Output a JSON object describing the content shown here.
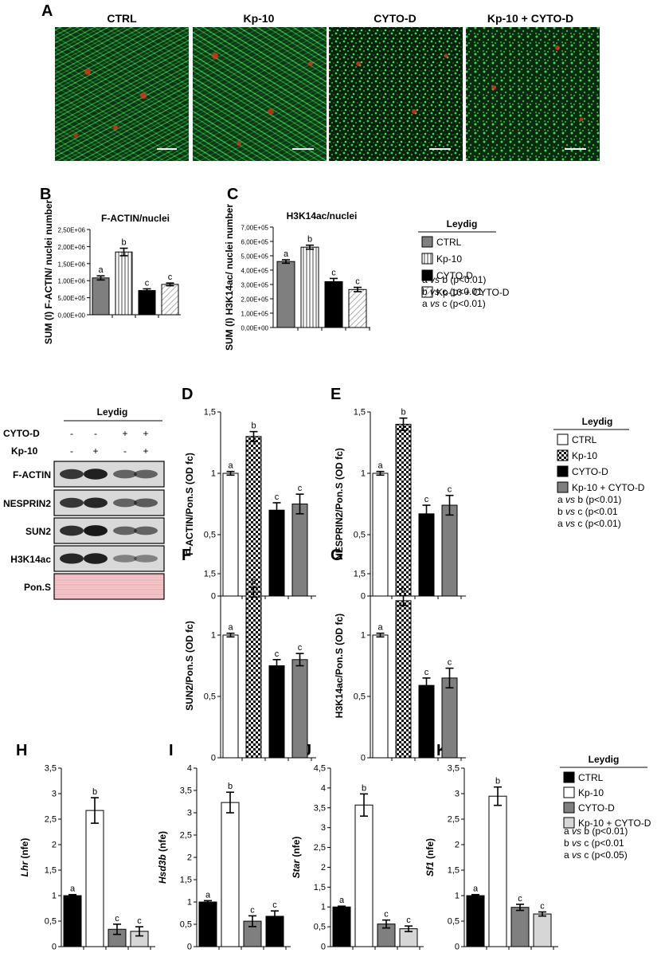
{
  "panels": {
    "A": "A",
    "B": "B",
    "C": "C",
    "D": "D",
    "E": "E",
    "F": "F",
    "G": "G",
    "H": "H",
    "I": "I",
    "J": "J",
    "K": "K"
  },
  "micrographs": [
    "CTRL",
    "Kp-10",
    "CYTO-D",
    "Kp-10 + CYTO-D"
  ],
  "blot": {
    "title": "Leydig",
    "row_labels": [
      "CYTO-D",
      "Kp-10"
    ],
    "cyto_d": [
      "-",
      "-",
      "+",
      "+"
    ],
    "kp10": [
      "-",
      "+",
      "-",
      "+"
    ],
    "bands": [
      "F-ACTIN",
      "NESPRIN2",
      "SUN2",
      "H3K14ac",
      "Pon.S"
    ]
  },
  "legends": [
    {
      "title": "Leydig",
      "entries": [
        "CTRL",
        "Kp-10",
        "CYTO-D",
        "Kp-10 + CYTO-D"
      ],
      "notes": [
        "a vs b (p<0.01)",
        "b vs c (p<0.01",
        "a vs c (p<0.01)"
      ]
    },
    {
      "title": "Leydig",
      "entries": [
        "CTRL",
        "Kp-10",
        "CYTO-D",
        "Kp-10 + CYTO-D"
      ],
      "notes": [
        "a vs b (p<0.01)",
        "b vs c (p<0.01",
        "a vs c (p<0.01)"
      ]
    },
    {
      "title": "Leydig",
      "entries": [
        "CTRL",
        "Kp-10",
        "CYTO-D",
        "Kp-10 + CYTO-D"
      ],
      "notes": [
        "a vs b (p<0.01)",
        "b vs c (p<0.01",
        "a vs c (p<0.05)"
      ]
    }
  ],
  "chart_data": [
    {
      "id": "B",
      "type": "bar",
      "title": "F-ACTIN/nuclei",
      "ylabel": "SUM (I) F-ACTIN/ nuclei number",
      "xlabel": "",
      "categories": [
        "CTRL",
        "Kp-10",
        "CYTO-D",
        "Kp-10 + CYTO-D"
      ],
      "values": [
        1080000,
        1840000,
        710000,
        890000
      ],
      "errors": [
        60000,
        110000,
        50000,
        40000
      ],
      "letters": [
        "a",
        "b",
        "c",
        "c"
      ],
      "ylim": [
        0,
        2500000
      ],
      "yticks": [
        "0,00E+00",
        "5,00E+05",
        "1,00E+06",
        "1,50E+06",
        "2,00E+06",
        "2,50E+06"
      ],
      "fills": [
        "gray",
        "vstripe",
        "black",
        "diag"
      ]
    },
    {
      "id": "C",
      "type": "bar",
      "title": "H3K14ac/nuclei",
      "ylabel": "SUM (I) H3K14ac/ nuclei number",
      "xlabel": "",
      "categories": [
        "CTRL",
        "Kp-10",
        "CYTO-D",
        "Kp-10 + CYTO-D"
      ],
      "values": [
        460000,
        560000,
        320000,
        265000
      ],
      "errors": [
        12000,
        14000,
        22000,
        15000
      ],
      "letters": [
        "a",
        "b",
        "c",
        "c"
      ],
      "ylim": [
        0,
        700000
      ],
      "yticks": [
        "0,00E+00",
        "1,00E+05",
        "2,00E+05",
        "3,00E+05",
        "4,00E+05",
        "5,00E+05",
        "6,00E+05",
        "7,00E+05"
      ],
      "fills": [
        "gray",
        "vstripe",
        "black",
        "diag"
      ]
    },
    {
      "id": "D",
      "type": "bar",
      "title": "",
      "xlabel": "",
      "ylabel": "F-ACTIN/Pon.S (OD fc)",
      "categories": [
        "CTRL",
        "Kp-10",
        "CYTO-D",
        "Kp-10 + CYTO-D"
      ],
      "values": [
        1.0,
        1.3,
        0.7,
        0.75
      ],
      "errors": [
        0.015,
        0.04,
        0.06,
        0.08
      ],
      "letters": [
        "a",
        "b",
        "c",
        "c"
      ],
      "ylim": [
        0,
        1.5
      ],
      "yticks": [
        "0",
        "0,5",
        "1",
        "1,5"
      ],
      "fills": [
        "white",
        "check",
        "black",
        "gray"
      ]
    },
    {
      "id": "E",
      "type": "bar",
      "title": "",
      "xlabel": "",
      "ylabel": "NESPRIN2/Pon.S (OD fc)",
      "categories": [
        "CTRL",
        "Kp-10",
        "CYTO-D",
        "Kp-10 + CYTO-D"
      ],
      "values": [
        1.0,
        1.4,
        0.67,
        0.74
      ],
      "errors": [
        0.015,
        0.05,
        0.07,
        0.08
      ],
      "letters": [
        "a",
        "b",
        "c",
        "c"
      ],
      "ylim": [
        0,
        1.5
      ],
      "yticks": [
        "0",
        "0,5",
        "1",
        "1,5"
      ],
      "fills": [
        "white",
        "check",
        "black",
        "gray"
      ]
    },
    {
      "id": "F",
      "type": "bar",
      "title": "",
      "xlabel": "",
      "ylabel": "SUN2/Pon.S (OD fc)",
      "categories": [
        "CTRL",
        "Kp-10",
        "CYTO-D",
        "Kp-10 + CYTO-D"
      ],
      "values": [
        1.0,
        1.35,
        0.75,
        0.8
      ],
      "errors": [
        0.015,
        0.04,
        0.05,
        0.05
      ],
      "letters": [
        "a",
        "b",
        "c",
        "c"
      ],
      "ylim": [
        0,
        1.5
      ],
      "yticks": [
        "0",
        "0,5",
        "1",
        "1,5"
      ],
      "fills": [
        "white",
        "check",
        "black",
        "gray"
      ]
    },
    {
      "id": "G",
      "type": "bar",
      "title": "",
      "xlabel": "",
      "ylabel": "H3K14ac/Pon.S (OD fc)",
      "categories": [
        "CTRL",
        "Kp-10",
        "CYTO-D",
        "Kp-10 + CYTO-D"
      ],
      "values": [
        1.0,
        1.28,
        0.59,
        0.65
      ],
      "errors": [
        0.015,
        0.04,
        0.06,
        0.08
      ],
      "letters": [
        "a",
        "b",
        "c",
        "c"
      ],
      "ylim": [
        0,
        1.5
      ],
      "yticks": [
        "0",
        "0,5",
        "1",
        "1,5"
      ],
      "fills": [
        "white",
        "check",
        "black",
        "gray"
      ]
    },
    {
      "id": "H",
      "type": "bar",
      "title": "",
      "xlabel": "",
      "ylabel": "Lhr (nfe)",
      "categories": [
        "CTRL",
        "Kp-10",
        "CYTO-D",
        "Kp-10 + CYTO-D"
      ],
      "values": [
        1.0,
        2.67,
        0.34,
        0.3
      ],
      "errors": [
        0.02,
        0.25,
        0.1,
        0.09
      ],
      "letters": [
        "a",
        "b",
        "c",
        "c"
      ],
      "ylim": [
        0,
        3.5
      ],
      "yticks": [
        "0",
        "0,5",
        "1",
        "1,5",
        "2",
        "2,5",
        "3",
        "3,5"
      ],
      "fills": [
        "black",
        "white",
        "gray",
        "lightgray"
      ]
    },
    {
      "id": "I",
      "type": "bar",
      "title": "",
      "xlabel": "",
      "ylabel": "Hsd3b (nfe)",
      "categories": [
        "CTRL",
        "Kp-10",
        "CYTO-D",
        "Kp-10 + CYTO-D"
      ],
      "values": [
        1.0,
        3.23,
        0.57,
        0.68
      ],
      "errors": [
        0.03,
        0.23,
        0.12,
        0.12
      ],
      "letters": [
        "a",
        "b",
        "c",
        "c"
      ],
      "ylim": [
        0,
        4
      ],
      "yticks": [
        "0",
        "0,5",
        "1",
        "1,5",
        "2",
        "2,5",
        "3",
        "3,5",
        "4"
      ],
      "fills": [
        "black",
        "white",
        "gray",
        "black"
      ]
    },
    {
      "id": "J",
      "type": "bar",
      "title": "",
      "xlabel": "",
      "ylabel": "Star (nfe)",
      "categories": [
        "CTRL",
        "Kp-10",
        "CYTO-D",
        "Kp-10 + CYTO-D"
      ],
      "values": [
        1.0,
        3.57,
        0.57,
        0.45
      ],
      "errors": [
        0.02,
        0.28,
        0.1,
        0.07
      ],
      "letters": [
        "a",
        "b",
        "c",
        "c"
      ],
      "ylim": [
        0,
        4.5
      ],
      "yticks": [
        "0",
        "0,5",
        "1",
        "1,5",
        "2",
        "2,5",
        "3",
        "3,5",
        "4",
        "4,5"
      ],
      "fills": [
        "black",
        "white",
        "gray",
        "lightgray"
      ]
    },
    {
      "id": "K",
      "type": "bar",
      "title": "",
      "xlabel": "",
      "ylabel": "Sf1 (nfe)",
      "categories": [
        "CTRL",
        "Kp-10",
        "CYTO-D",
        "Kp-10 + CYTO-D"
      ],
      "values": [
        1.0,
        2.95,
        0.77,
        0.64
      ],
      "errors": [
        0.02,
        0.18,
        0.06,
        0.04
      ],
      "letters": [
        "a",
        "b",
        "c",
        "c"
      ],
      "ylim": [
        0,
        3.5
      ],
      "yticks": [
        "0",
        "0,5",
        "1",
        "1,5",
        "2",
        "2,5",
        "3",
        "3,5"
      ],
      "fills": [
        "black",
        "white",
        "gray",
        "lightgray"
      ]
    }
  ]
}
